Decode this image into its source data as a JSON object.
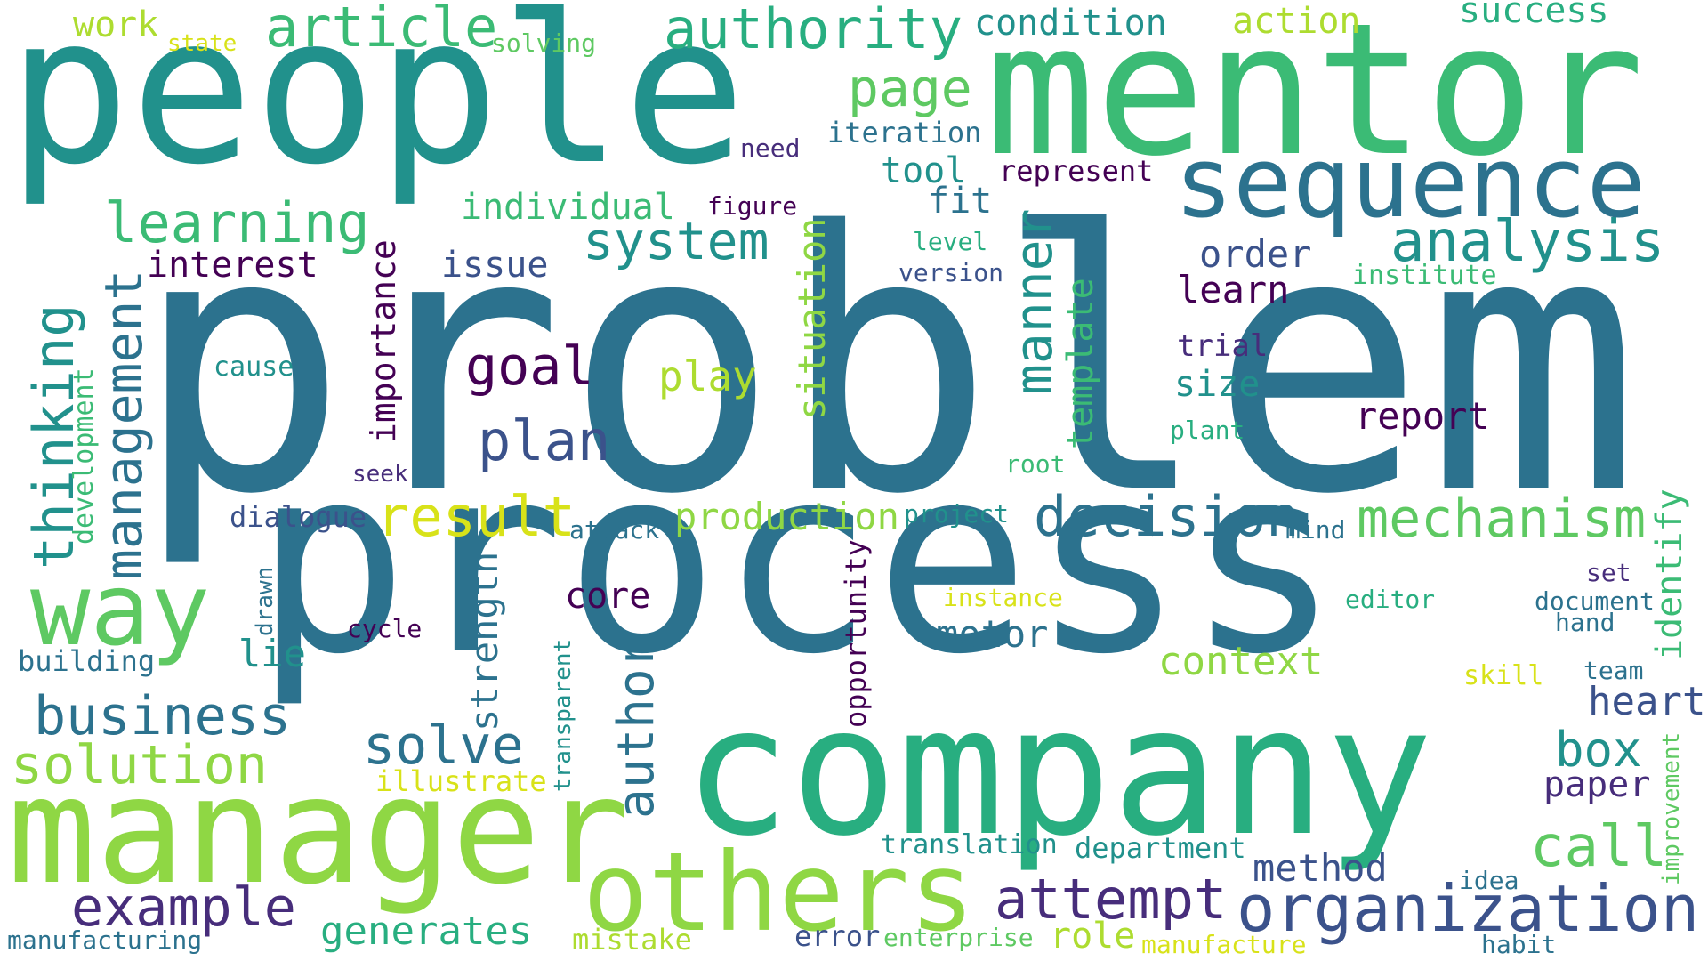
{
  "palette": {
    "purple": "#440154",
    "indigo": "#472d7b",
    "slate": "#3b528b",
    "steel": "#2c728e",
    "teal": "#21918c",
    "green_teal": "#28ae80",
    "green": "#3bbb75",
    "light_green": "#5ec962",
    "lime": "#8fd744",
    "yellow_green": "#addc30",
    "yellow": "#d8e219"
  },
  "words": [
    {
      "text": "problem",
      "color": "#2c728e"
    },
    {
      "text": "process",
      "color": "#2c728e"
    },
    {
      "text": "people",
      "color": "#21918c"
    },
    {
      "text": "mentor",
      "color": "#3bbb75"
    },
    {
      "text": "company",
      "color": "#28ae80"
    },
    {
      "text": "manager",
      "color": "#8fd744"
    },
    {
      "text": "others",
      "color": "#8fd744"
    },
    {
      "text": "sequence",
      "color": "#2c728e"
    },
    {
      "text": "way",
      "color": "#5ec962"
    },
    {
      "text": "organization",
      "color": "#3b528b"
    },
    {
      "text": "article",
      "color": "#3bbb75"
    },
    {
      "text": "authority",
      "color": "#28ae80"
    },
    {
      "text": "analysis",
      "color": "#21918c"
    },
    {
      "text": "learning",
      "color": "#3bbb75"
    },
    {
      "text": "system",
      "color": "#21918c"
    },
    {
      "text": "mechanism",
      "color": "#5ec962"
    },
    {
      "text": "decision",
      "color": "#2c728e"
    },
    {
      "text": "result",
      "color": "#d8e219"
    },
    {
      "text": "business",
      "color": "#2c728e"
    },
    {
      "text": "solution",
      "color": "#8fd744"
    },
    {
      "text": "example",
      "color": "#472d7b"
    },
    {
      "text": "attempt",
      "color": "#472d7b"
    },
    {
      "text": "call",
      "color": "#5ec962"
    },
    {
      "text": "plan",
      "color": "#3b528b"
    },
    {
      "text": "solve",
      "color": "#2c728e"
    },
    {
      "text": "goal",
      "color": "#440154"
    },
    {
      "text": "page",
      "color": "#5ec962"
    },
    {
      "text": "condition",
      "color": "#21918c"
    },
    {
      "text": "action",
      "color": "#addc30"
    },
    {
      "text": "success",
      "color": "#28ae80"
    },
    {
      "text": "work",
      "color": "#addc30"
    },
    {
      "text": "state",
      "color": "#d8e219"
    },
    {
      "text": "solving",
      "color": "#5ec962"
    },
    {
      "text": "individual",
      "color": "#3bbb75"
    },
    {
      "text": "interest",
      "color": "#440154"
    },
    {
      "text": "issue",
      "color": "#3b528b"
    },
    {
      "text": "tool",
      "color": "#21918c"
    },
    {
      "text": "fit",
      "color": "#2c728e"
    },
    {
      "text": "iteration",
      "color": "#2c728e"
    },
    {
      "text": "need",
      "color": "#472d7b"
    },
    {
      "text": "figure",
      "color": "#440154"
    },
    {
      "text": "represent",
      "color": "#440154"
    },
    {
      "text": "order",
      "color": "#3b528b"
    },
    {
      "text": "learn",
      "color": "#440154"
    },
    {
      "text": "trial",
      "color": "#472d7b"
    },
    {
      "text": "size",
      "color": "#21918c"
    },
    {
      "text": "report",
      "color": "#440154"
    },
    {
      "text": "level",
      "color": "#28ae80"
    },
    {
      "text": "version",
      "color": "#3b528b"
    },
    {
      "text": "institute",
      "color": "#3bbb75"
    },
    {
      "text": "play",
      "color": "#addc30"
    },
    {
      "text": "cause",
      "color": "#21918c"
    },
    {
      "text": "production",
      "color": "#8fd744"
    },
    {
      "text": "project",
      "color": "#21918c"
    },
    {
      "text": "plant",
      "color": "#28ae80"
    },
    {
      "text": "root",
      "color": "#3bbb75"
    },
    {
      "text": "seek",
      "color": "#472d7b"
    },
    {
      "text": "dialogue",
      "color": "#3b528b"
    },
    {
      "text": "attack",
      "color": "#2c728e"
    },
    {
      "text": "mind",
      "color": "#2c728e"
    },
    {
      "text": "core",
      "color": "#440154"
    },
    {
      "text": "motor",
      "color": "#2c728e"
    },
    {
      "text": "context",
      "color": "#8fd744"
    },
    {
      "text": "cycle",
      "color": "#440154"
    },
    {
      "text": "instance",
      "color": "#d8e219"
    },
    {
      "text": "editor",
      "color": "#28ae80"
    },
    {
      "text": "building",
      "color": "#2c728e"
    },
    {
      "text": "lie",
      "color": "#21918c"
    },
    {
      "text": "heart",
      "color": "#3b528b"
    },
    {
      "text": "box",
      "color": "#21918c"
    },
    {
      "text": "paper",
      "color": "#472d7b"
    },
    {
      "text": "set",
      "color": "#472d7b"
    },
    {
      "text": "document",
      "color": "#2c728e"
    },
    {
      "text": "hand",
      "color": "#2c728e"
    },
    {
      "text": "team",
      "color": "#2c728e"
    },
    {
      "text": "skill",
      "color": "#d8e219"
    },
    {
      "text": "illustrate",
      "color": "#d8e219"
    },
    {
      "text": "translation",
      "color": "#21918c"
    },
    {
      "text": "department",
      "color": "#21918c"
    },
    {
      "text": "method",
      "color": "#3b528b"
    },
    {
      "text": "role",
      "color": "#addc30"
    },
    {
      "text": "generates",
      "color": "#28ae80"
    },
    {
      "text": "mistake",
      "color": "#addc30"
    },
    {
      "text": "error",
      "color": "#3b528b"
    },
    {
      "text": "enterprise",
      "color": "#5ec962"
    },
    {
      "text": "manufacture",
      "color": "#d8e219"
    },
    {
      "text": "habit",
      "color": "#2c728e"
    },
    {
      "text": "idea",
      "color": "#2c728e"
    },
    {
      "text": "manufacturing",
      "color": "#2c728e"
    },
    {
      "text": "thinking",
      "color": "#21918c"
    },
    {
      "text": "management",
      "color": "#2c728e"
    },
    {
      "text": "development",
      "color": "#3bbb75"
    },
    {
      "text": "importance",
      "color": "#440154"
    },
    {
      "text": "situation",
      "color": "#8fd744"
    },
    {
      "text": "manner",
      "color": "#21918c"
    },
    {
      "text": "template",
      "color": "#3bbb75"
    },
    {
      "text": "identify",
      "color": "#3bbb75"
    },
    {
      "text": "strength",
      "color": "#2c728e"
    },
    {
      "text": "author",
      "color": "#2c728e"
    },
    {
      "text": "opportunity",
      "color": "#440154"
    },
    {
      "text": "transparent",
      "color": "#21918c"
    },
    {
      "text": "drawn",
      "color": "#2c728e"
    },
    {
      "text": "improvement",
      "color": "#5ec962"
    }
  ]
}
